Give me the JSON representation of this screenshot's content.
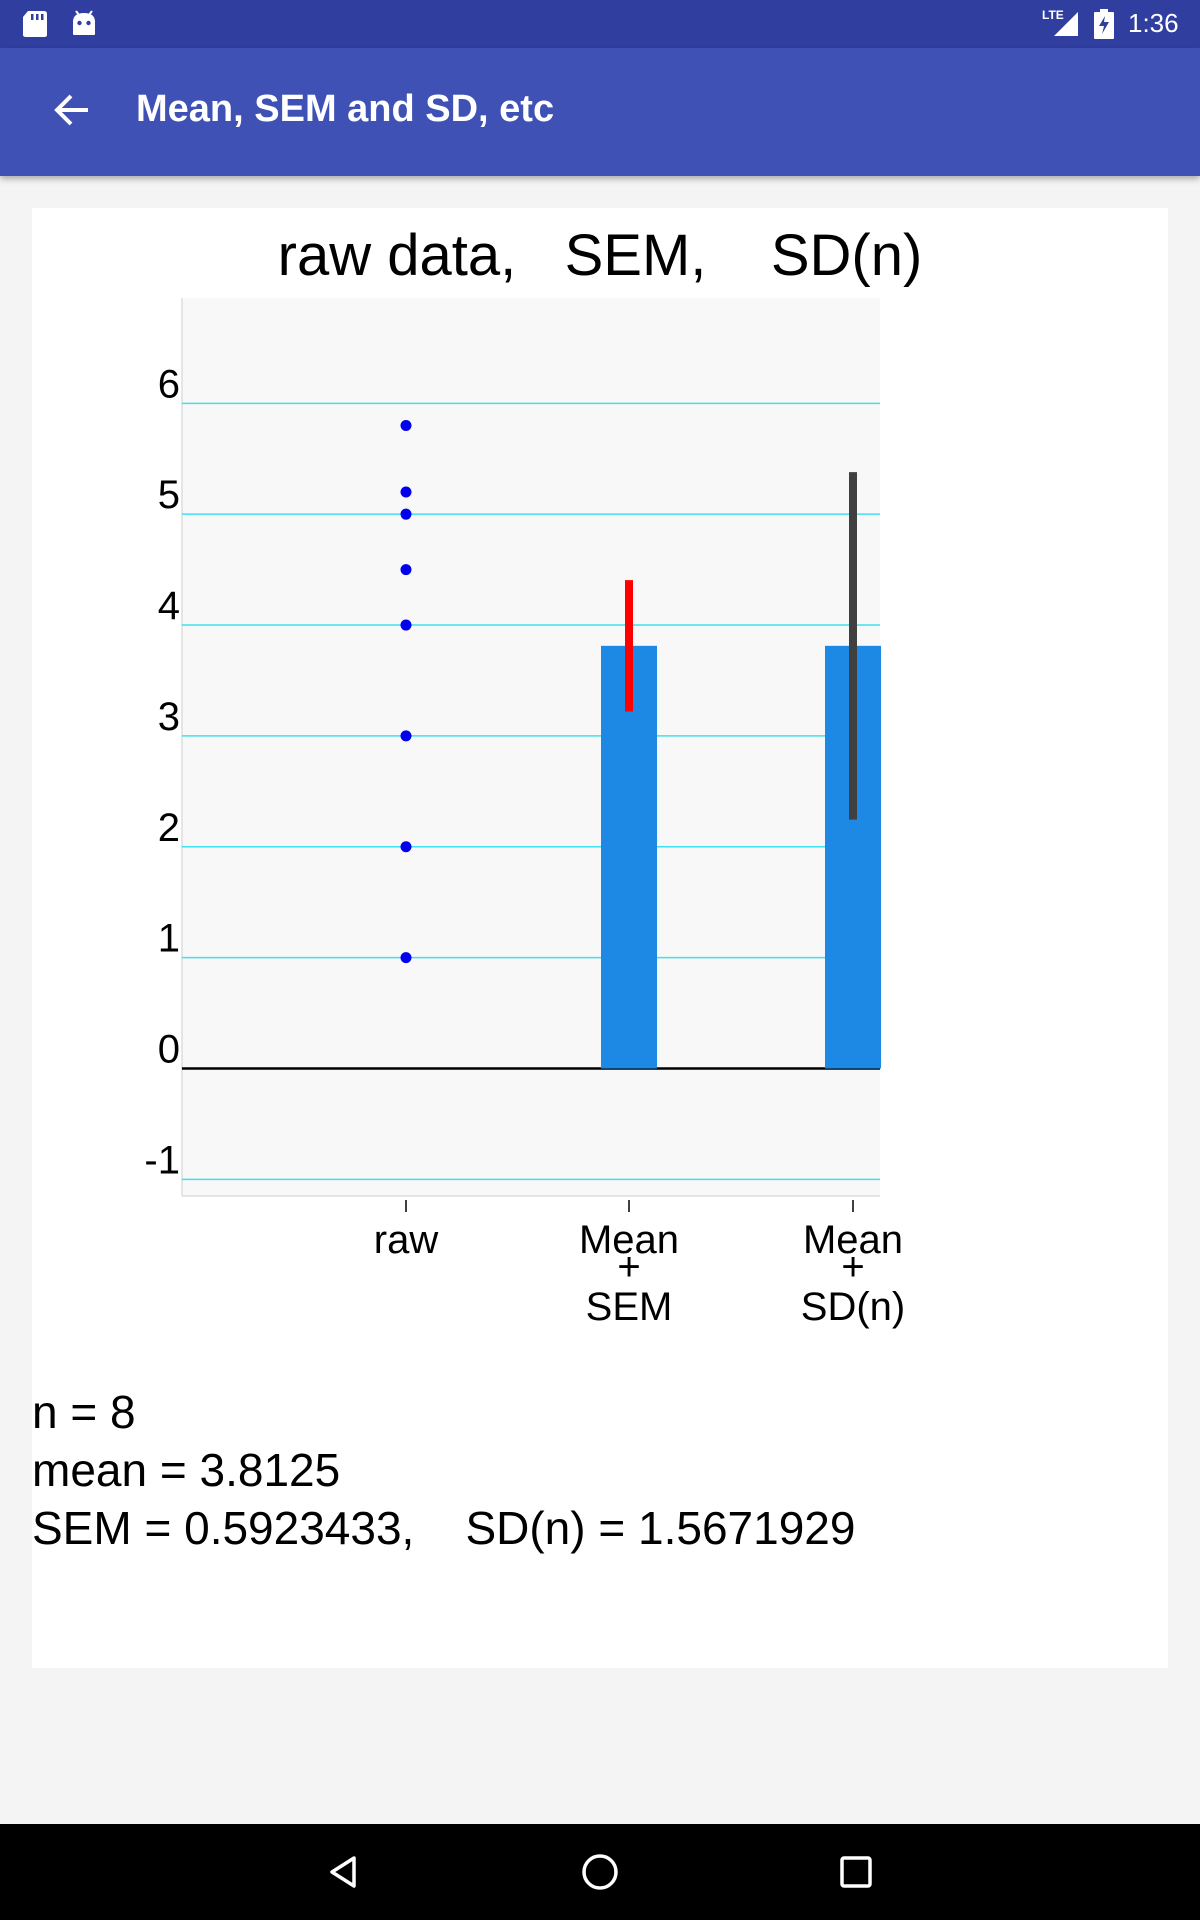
{
  "status_bar": {
    "time": "1:36",
    "network": "LTE",
    "icons": [
      "sd-card-icon",
      "android-icon",
      "signal-icon",
      "battery-charging-icon"
    ]
  },
  "app_bar": {
    "title": "Mean, SEM and SD, etc",
    "back_icon": "arrow-back-icon"
  },
  "chart_data": {
    "type": "bar",
    "title": "raw data,   SEM,    SD(n)",
    "ylim": [
      -1.15,
      6.95
    ],
    "yticks": [
      -1,
      0,
      1,
      2,
      3,
      4,
      5,
      6
    ],
    "ytick_labels": [
      "-1",
      "0",
      "1",
      "2",
      "3",
      "4",
      "5",
      "6"
    ],
    "grid": true,
    "categories": [
      "raw",
      "Mean\n+\nSEM",
      "Mean\n+\nSD(n)"
    ],
    "raw_points": [
      1,
      2,
      3,
      4,
      4.5,
      5,
      5.2,
      5.8
    ],
    "bars": [
      {
        "category": "Mean + SEM",
        "value": 3.8125,
        "error": 0.5923433,
        "error_color": "#ff0000"
      },
      {
        "category": "Mean + SD(n)",
        "value": 3.8125,
        "error": 1.5671929,
        "error_color": "#404040"
      }
    ],
    "colors": {
      "bar": "#1e88e5",
      "points": "#0000ee",
      "grid": "#40e0f0",
      "zero_line": "#000000"
    }
  },
  "stats": {
    "n": "n = 8",
    "mean": "mean = 3.8125",
    "sem_sd": "SEM = 0.5923433,    SD(n) = 1.5671929"
  },
  "nav_bar": {
    "buttons": [
      "back-triangle-icon",
      "home-circle-icon",
      "recents-square-icon"
    ]
  }
}
